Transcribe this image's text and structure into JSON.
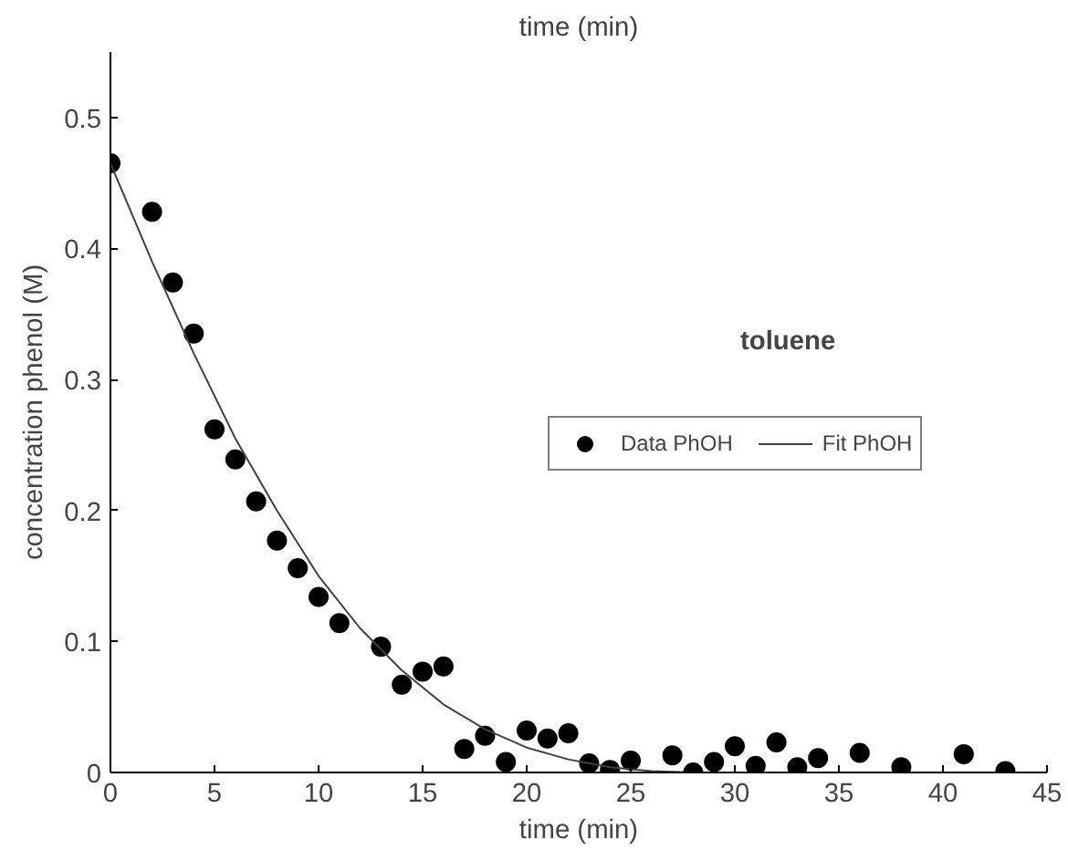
{
  "chart_data": {
    "type": "scatter",
    "title": "toluene",
    "xlabel": "time (min)",
    "ylabel": "concentration phenol (M)",
    "annotations": [
      "time (min)"
    ],
    "xlim": [
      0,
      45
    ],
    "xticks": [
      0,
      5,
      10,
      15,
      20,
      25,
      30,
      35,
      40,
      45
    ],
    "ylim": [
      0,
      0.55
    ],
    "yticks": [
      0,
      0.1,
      0.2,
      0.3,
      0.4,
      0.5
    ],
    "grid": false,
    "legend": "right",
    "series": [
      {
        "name": "Data PhOH",
        "marker": "circle",
        "color": "#000000",
        "x": [
          0,
          2,
          3,
          4,
          5,
          6,
          7,
          8,
          9,
          10,
          11,
          13,
          14,
          15,
          16,
          17,
          18,
          19,
          20,
          21,
          22,
          23,
          24,
          25,
          27,
          28,
          29,
          30,
          31,
          32,
          33,
          34,
          36,
          38,
          41,
          43
        ],
        "values": [
          0.465,
          0.428,
          0.374,
          0.335,
          0.262,
          0.239,
          0.207,
          0.177,
          0.156,
          0.134,
          0.114,
          0.096,
          0.067,
          0.077,
          0.081,
          0.018,
          0.028,
          0.008,
          0.032,
          0.026,
          0.03,
          0.007,
          0.002,
          0.009,
          0.013,
          0.0,
          0.008,
          0.02,
          0.005,
          0.023,
          0.004,
          0.011,
          0.015,
          0.004,
          0.014,
          0.001
        ]
      },
      {
        "name": "Fit PhOH",
        "type": "line",
        "marker": "none",
        "color": "#404040",
        "line_style": "solid",
        "x": [
          0,
          2,
          4,
          6,
          8,
          10,
          12,
          14,
          16,
          18,
          20,
          22,
          24,
          26,
          28,
          35,
          43
        ],
        "values": [
          0.465,
          0.39,
          0.32,
          0.255,
          0.2,
          0.15,
          0.11,
          0.078,
          0.052,
          0.033,
          0.019,
          0.01,
          0.004,
          0.001,
          0,
          0,
          0
        ]
      }
    ]
  }
}
